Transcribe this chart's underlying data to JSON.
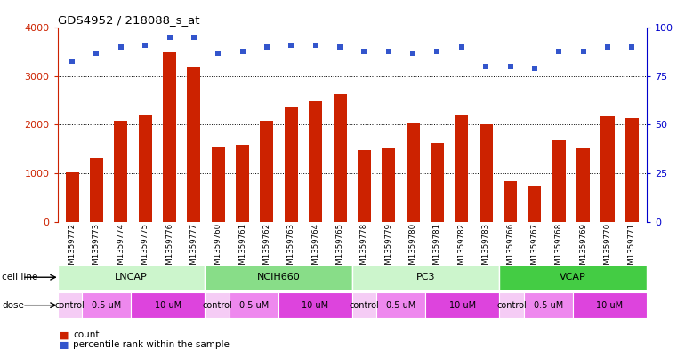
{
  "title": "GDS4952 / 218088_s_at",
  "samples": [
    "GSM1359772",
    "GSM1359773",
    "GSM1359774",
    "GSM1359775",
    "GSM1359776",
    "GSM1359777",
    "GSM1359760",
    "GSM1359761",
    "GSM1359762",
    "GSM1359763",
    "GSM1359764",
    "GSM1359765",
    "GSM1359778",
    "GSM1359779",
    "GSM1359780",
    "GSM1359781",
    "GSM1359782",
    "GSM1359783",
    "GSM1359766",
    "GSM1359767",
    "GSM1359768",
    "GSM1359769",
    "GSM1359770",
    "GSM1359771"
  ],
  "counts": [
    1020,
    1320,
    2080,
    2200,
    3520,
    3180,
    1530,
    1580,
    2080,
    2360,
    2480,
    2640,
    1470,
    1520,
    2020,
    1620,
    2200,
    2000,
    840,
    720,
    1680,
    1520,
    2180,
    2130
  ],
  "percentile_ranks": [
    83,
    87,
    90,
    91,
    95,
    95,
    87,
    88,
    90,
    91,
    91,
    90,
    88,
    88,
    87,
    88,
    90,
    80,
    80,
    79,
    88,
    88,
    90,
    90
  ],
  "bar_color": "#cc2200",
  "dot_color": "#3355cc",
  "cell_lines": [
    {
      "name": "LNCAP",
      "start": 0,
      "end": 6,
      "color": "#ccf5cc"
    },
    {
      "name": "NCIH660",
      "start": 6,
      "end": 12,
      "color": "#88dd88"
    },
    {
      "name": "PC3",
      "start": 12,
      "end": 18,
      "color": "#ccf5cc"
    },
    {
      "name": "VCAP",
      "start": 18,
      "end": 24,
      "color": "#44cc44"
    }
  ],
  "dose_labels_per_sample": [
    "control",
    "0.5 uM",
    "0.5 uM",
    "10 uM",
    "10 uM",
    "10 uM",
    "control",
    "0.5 uM",
    "0.5 uM",
    "10 uM",
    "10 uM",
    "10 uM",
    "control",
    "0.5 uM",
    "0.5 uM",
    "10 uM",
    "10 uM",
    "10 uM",
    "control",
    "0.5 uM",
    "0.5 uM",
    "10 uM",
    "10 uM",
    "10 uM"
  ],
  "dose_colors_map": {
    "control": "#f5ccf5",
    "0.5 uM": "#ee88ee",
    "10 uM": "#dd44dd"
  },
  "ylim_left": [
    0,
    4000
  ],
  "ylim_right": [
    0,
    100
  ],
  "yticks_left": [
    0,
    1000,
    2000,
    3000,
    4000
  ],
  "yticks_right": [
    0,
    25,
    50,
    75,
    100
  ],
  "background_color": "#ffffff",
  "plot_bg_color": "#ffffff",
  "xtick_bg_color": "#cccccc",
  "legend_count_color": "#cc2200",
  "legend_dot_color": "#3355cc"
}
